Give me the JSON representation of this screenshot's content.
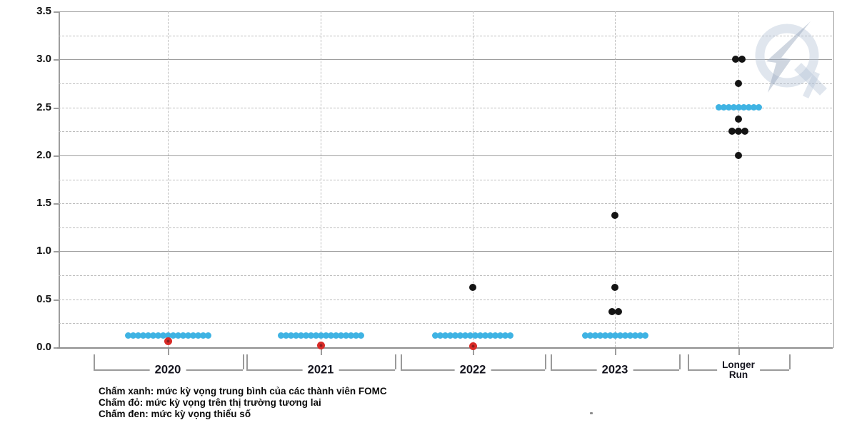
{
  "chart_data": {
    "type": "scatter",
    "title": "",
    "xlabel": "",
    "ylabel": "",
    "ylim": [
      0,
      3.5
    ],
    "grid": true,
    "ytick_labels": [
      "0.0",
      "0.5",
      "1.0",
      "1.5",
      "2.0",
      "2.5",
      "3.0",
      "3.5"
    ],
    "solid_gridlines": [
      1.0,
      2.0,
      3.0
    ],
    "dashed_gridlines": [
      0.25,
      0.5,
      0.75,
      1.25,
      1.5,
      1.75,
      2.25,
      2.5,
      2.75,
      3.25
    ],
    "categories": [
      {
        "label": "2020",
        "label_lines": [
          "2020"
        ]
      },
      {
        "label": "2021",
        "label_lines": [
          "2021"
        ]
      },
      {
        "label": "2022",
        "label_lines": [
          "2022"
        ]
      },
      {
        "label": "2023",
        "label_lines": [
          "2023"
        ]
      },
      {
        "label": "Longer Run",
        "label_lines": [
          "Longer",
          "Run"
        ]
      }
    ],
    "series": [
      {
        "id": "fomc-median",
        "name": "Chấm xanh: mức kỳ vọng trung bình của các thành viên FOMC",
        "color": "#3fb3e3"
      },
      {
        "id": "futures-market",
        "name": "Chấm đỏ: mức kỳ vọng trên thị trường tương lai",
        "color": "#d92b27"
      },
      {
        "id": "minority",
        "name": "Chấm đen: mức kỳ vọng thiểu số",
        "color": "#141414"
      }
    ],
    "dot_groups": [
      {
        "category": "2020",
        "series": "fomc-median",
        "value": 0.125,
        "count": 17
      },
      {
        "category": "2020",
        "series": "futures-market",
        "value": 0.06,
        "count": 1
      },
      {
        "category": "2021",
        "series": "fomc-median",
        "value": 0.125,
        "count": 17
      },
      {
        "category": "2021",
        "series": "futures-market",
        "value": 0.02,
        "count": 1
      },
      {
        "category": "2022",
        "series": "fomc-median",
        "value": 0.125,
        "count": 16
      },
      {
        "category": "2022",
        "series": "futures-market",
        "value": 0.01,
        "count": 1
      },
      {
        "category": "2022",
        "series": "minority",
        "value": 0.625,
        "count": 1
      },
      {
        "category": "2023",
        "series": "fomc-median",
        "value": 0.125,
        "count": 13
      },
      {
        "category": "2023",
        "series": "minority",
        "value": 0.375,
        "count": 2
      },
      {
        "category": "2023",
        "series": "minority",
        "value": 0.625,
        "count": 1
      },
      {
        "category": "2023",
        "series": "minority",
        "value": 1.375,
        "count": 1
      },
      {
        "category": "Longer Run",
        "series": "fomc-median",
        "value": 2.5,
        "count": 9
      },
      {
        "category": "Longer Run",
        "series": "minority",
        "value": 2.0,
        "count": 1
      },
      {
        "category": "Longer Run",
        "series": "minority",
        "value": 2.25,
        "count": 3
      },
      {
        "category": "Longer Run",
        "series": "minority",
        "value": 2.375,
        "count": 1
      },
      {
        "category": "Longer Run",
        "series": "minority",
        "value": 2.75,
        "count": 1
      },
      {
        "category": "Longer Run",
        "series": "minority",
        "value": 3.0,
        "count": 2
      }
    ],
    "legend_position": "bottom-left",
    "legend_lines": [
      "Chấm xanh: mức kỳ vọng trung bình của các thành viên FOMC",
      "Chấm đỏ: mức kỳ vọng trên thị trường tương lai",
      "Chấm đen: mức kỳ vọng thiểu số"
    ]
  },
  "watermark": {
    "name": "q-lightning-logo"
  },
  "colors": {
    "blue_dot": "#3fb3e3",
    "red_dot": "#d92b27",
    "red_dot_core": "#8b1d1d",
    "black_dot": "#141414",
    "grid_solid": "#9d9d9d",
    "grid_dashed": "#bdbdbd",
    "axis": "#8f8f8f",
    "bracket": "#9a9a9a",
    "label_text": "#15151f",
    "watermark_fill": "rgba(178,192,212,0.40)",
    "watermark_bolt": "rgba(148,163,186,0.45)"
  }
}
